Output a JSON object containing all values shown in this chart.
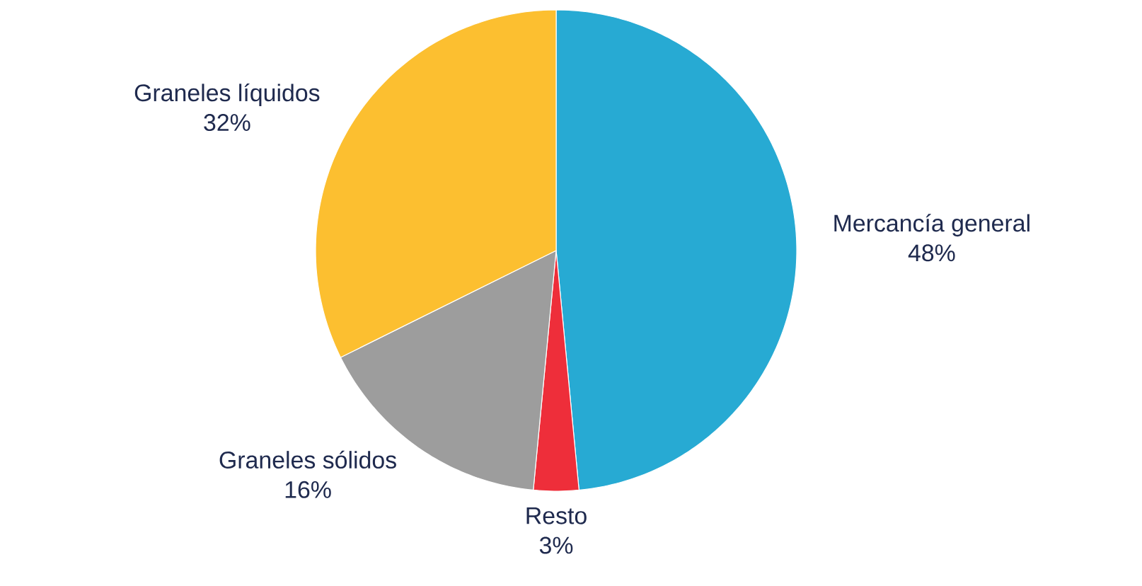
{
  "chart_data": {
    "type": "pie",
    "categories": [
      "Mercancía general",
      "Resto",
      "Graneles sólidos",
      "Graneles líquidos"
    ],
    "values": [
      48,
      3,
      16,
      32
    ],
    "value_labels": [
      "48%",
      "3%",
      "16%",
      "32%"
    ],
    "colors": [
      "#27aad3",
      "#ee2e3a",
      "#9d9d9d",
      "#fcbf30"
    ]
  }
}
